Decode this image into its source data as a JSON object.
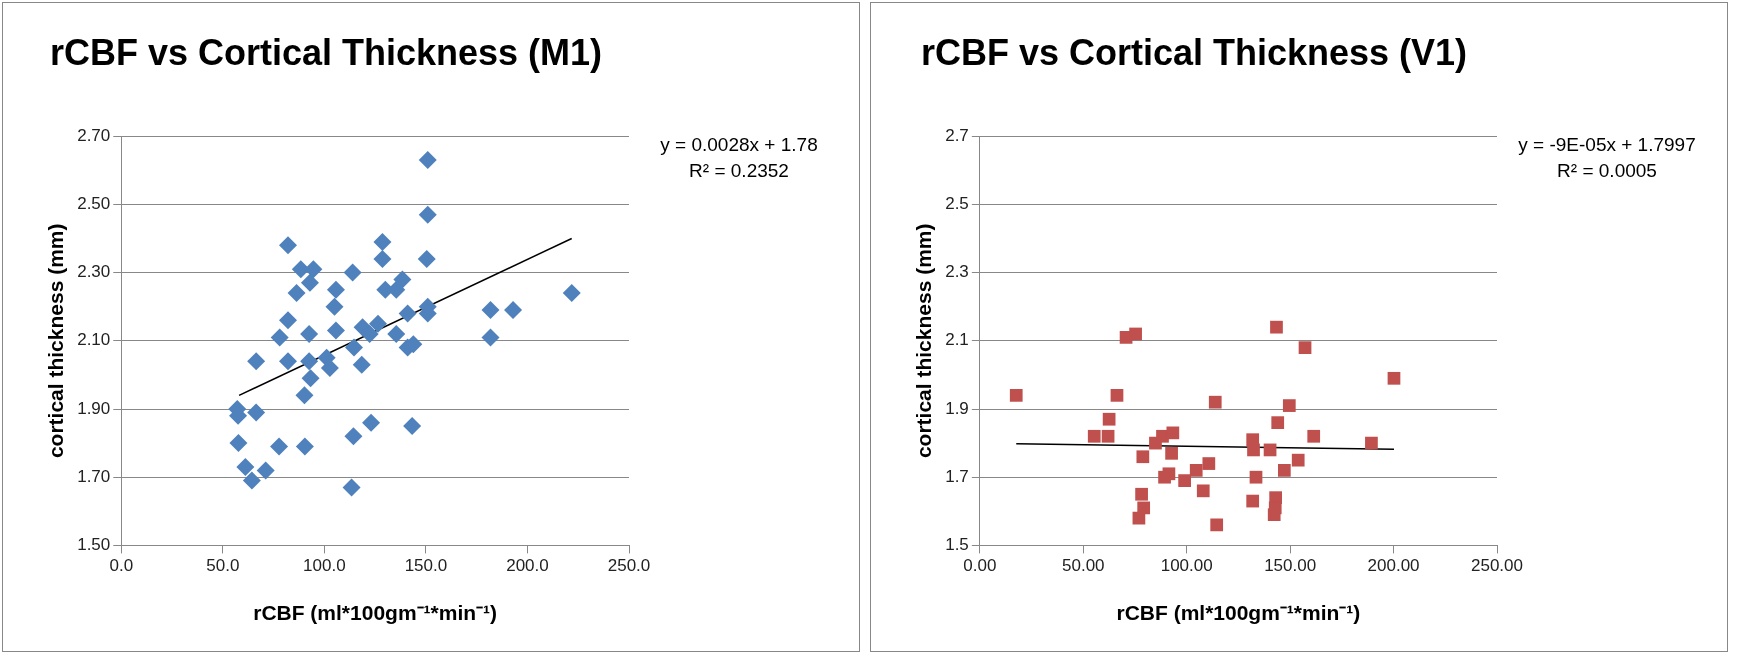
{
  "chart_data": [
    {
      "type": "scatter",
      "title": "rCBF vs Cortical Thickness (M1)",
      "xlabel": "rCBF (ml*100gm⁻¹*min⁻¹)",
      "ylabel": "cortical thickness (mm)",
      "grid": "y",
      "xlim": [
        0,
        250
      ],
      "xticks": [
        {
          "value": 0,
          "label": "0.0"
        },
        {
          "value": 50,
          "label": "50.0"
        },
        {
          "value": 100,
          "label": "100.0"
        },
        {
          "value": 150,
          "label": "150.0"
        },
        {
          "value": 200,
          "label": "200.0"
        },
        {
          "value": 250,
          "label": "250.0"
        }
      ],
      "ylim": [
        1.5,
        2.7
      ],
      "yticks": [
        {
          "value": 1.5,
          "label": "1.50"
        },
        {
          "value": 1.7,
          "label": "1.70"
        },
        {
          "value": 1.9,
          "label": "1.90"
        },
        {
          "value": 2.1,
          "label": "2.10"
        },
        {
          "value": 2.3,
          "label": "2.30"
        },
        {
          "value": 2.5,
          "label": "2.50"
        },
        {
          "value": 2.7,
          "label": "2.70"
        }
      ],
      "annotations": [
        "y = 0.0028x + 1.78",
        "R² = 0.2352"
      ],
      "series": [
        {
          "color": "#4f81bd",
          "marker": "diamond",
          "x": [
            150.9,
            150.9,
            82.1,
            128.6,
            128.6,
            150.4,
            88.4,
            94.6,
            92.9,
            113.9,
            138.4,
            86.3,
            105.7,
            130,
            135.4,
            105,
            141,
            150.9,
            150.9,
            181.8,
            192.9,
            221.8,
            82.1,
            92.5,
            105.7,
            78,
            118.8,
            126.4,
            122.3,
            135.4,
            181.8,
            114.6,
            141,
            143.8,
            66.4,
            82.1,
            92.5,
            101.1,
            102.7,
            118.4,
            93.2,
            90.2,
            57.1,
            57.5,
            66.4,
            57.7,
            77.7,
            90.4,
            114.3,
            123,
            143.2,
            61.1,
            71.1,
            64.3,
            113.4
          ],
          "values": [
            2.63,
            2.47,
            2.38,
            2.39,
            2.34,
            2.34,
            2.31,
            2.31,
            2.27,
            2.3,
            2.28,
            2.24,
            2.25,
            2.25,
            2.25,
            2.2,
            2.18,
            2.2,
            2.18,
            2.19,
            2.19,
            2.24,
            2.16,
            2.12,
            2.13,
            2.11,
            2.14,
            2.15,
            2.12,
            2.12,
            2.11,
            2.08,
            2.08,
            2.09,
            2.04,
            2.04,
            2.04,
            2.05,
            2.02,
            2.03,
            1.99,
            1.94,
            1.9,
            1.88,
            1.89,
            1.8,
            1.79,
            1.79,
            1.82,
            1.86,
            1.85,
            1.73,
            1.72,
            1.69,
            1.67
          ]
        },
        {
          "type": "line",
          "marker": "none",
          "color": "#000000",
          "x": [
            58,
            221.8
          ],
          "values": [
            1.94,
            2.4
          ]
        }
      ]
    },
    {
      "type": "scatter",
      "title": "rCBF vs Cortical Thickness (V1)",
      "xlabel": "rCBF (ml*100gm⁻¹*min⁻¹)",
      "ylabel": "cortical thickness (mm)",
      "grid": "y",
      "xlim": [
        0,
        250
      ],
      "xticks": [
        {
          "value": 0,
          "label": "0.00"
        },
        {
          "value": 50,
          "label": "50.00"
        },
        {
          "value": 100,
          "label": "100.00"
        },
        {
          "value": 150,
          "label": "150.00"
        },
        {
          "value": 200,
          "label": "200.00"
        },
        {
          "value": 250,
          "label": "250.00"
        }
      ],
      "ylim": [
        1.5,
        2.7
      ],
      "yticks": [
        1.5,
        1.7,
        1.9,
        2.1,
        2.3,
        2.5,
        2.7
      ],
      "annotations": [
        "y = -9E-05x + 1.7997",
        "R² = 0.0005"
      ],
      "series": [
        {
          "color": "#c0504d",
          "marker": "square",
          "x": [
            17.6,
            70.7,
            75.3,
            143.4,
            157.2,
            200.2,
            66.3,
            113.8,
            149.6,
            62.5,
            144,
            55.3,
            62,
            88.3,
            93.3,
            84.9,
            131.9,
            132.3,
            140.3,
            161.4,
            189.3,
            78.8,
            92.7,
            110.7,
            153.9,
            104.6,
            147.2,
            89.3,
            91.4,
            99,
            133.5,
            108,
            78.2,
            79.2,
            76.9,
            114.5,
            131.9,
            143,
            142.3,
            142.8
          ],
          "values": [
            1.94,
            2.11,
            2.12,
            2.14,
            2.08,
            1.99,
            1.94,
            1.92,
            1.91,
            1.87,
            1.86,
            1.82,
            1.82,
            1.82,
            1.83,
            1.8,
            1.81,
            1.78,
            1.78,
            1.82,
            1.8,
            1.76,
            1.77,
            1.74,
            1.75,
            1.72,
            1.72,
            1.7,
            1.71,
            1.69,
            1.7,
            1.66,
            1.65,
            1.61,
            1.58,
            1.56,
            1.63,
            1.64,
            1.59,
            1.61
          ]
        },
        {
          "type": "line",
          "marker": "none",
          "color": "#000000",
          "x": [
            17.6,
            200.2
          ],
          "values": [
            1.798,
            1.782
          ]
        }
      ]
    }
  ]
}
